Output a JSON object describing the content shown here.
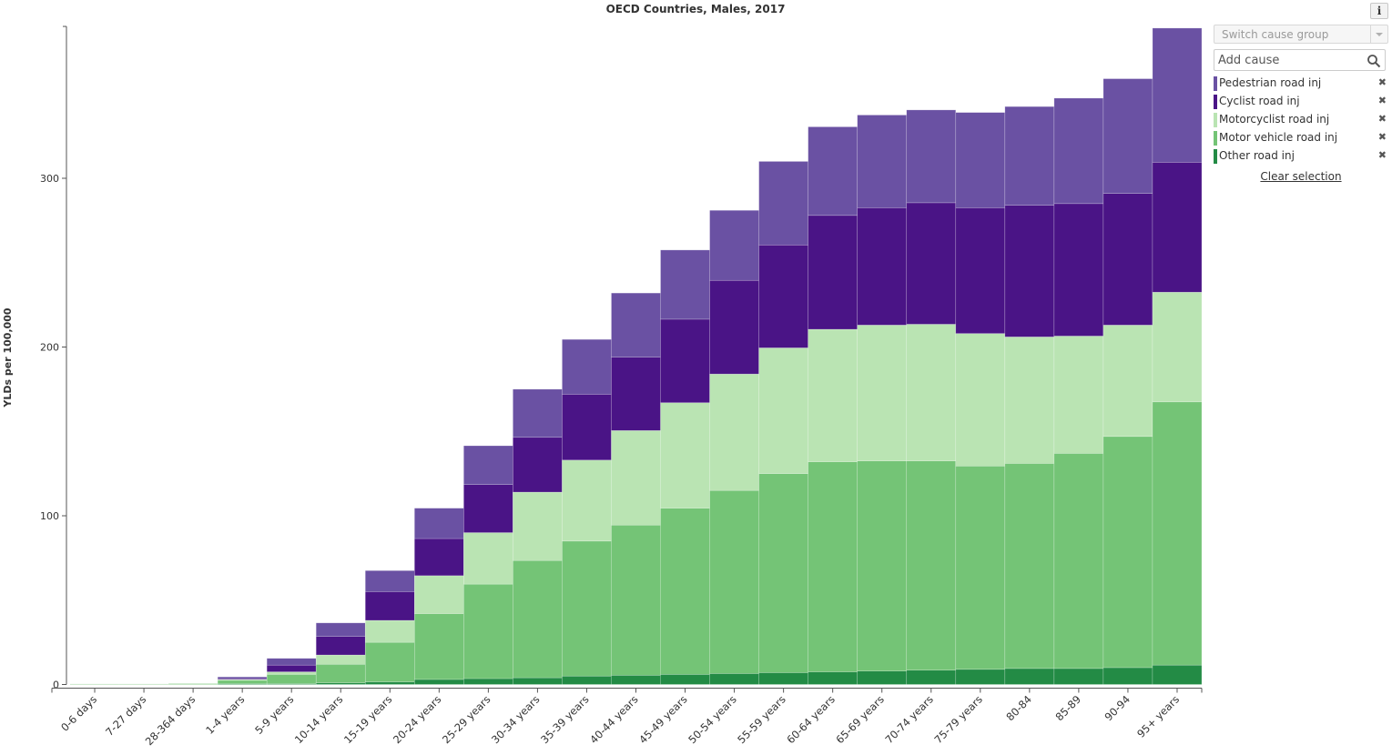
{
  "chart_data": {
    "type": "stacked-bar",
    "title": "OECD Countries, Males, 2017",
    "ylabel": "YLDs per 100,000",
    "xlabel": "",
    "ylim": [
      0,
      390
    ],
    "yticks": [
      0,
      100,
      200,
      300
    ],
    "categories": [
      "0-6 days",
      "7-27 days",
      "28-364 days",
      "1-4 years",
      "5-9 years",
      "10-14 years",
      "15-19 years",
      "20-24 years",
      "25-29 years",
      "30-34 years",
      "35-39 years",
      "40-44 years",
      "45-49 years",
      "50-54 years",
      "55-59 years",
      "60-64 years",
      "65-69 years",
      "70-74 years",
      "75-79 years",
      "80-84",
      "85-89",
      "90-94",
      "95+ years"
    ],
    "series": [
      {
        "name": "Other road inj",
        "color": "#238b45",
        "values": [
          0,
          0,
          0,
          0.5,
          0.5,
          1,
          1.5,
          3,
          3.5,
          4,
          5,
          5.5,
          6,
          6.5,
          7,
          7.5,
          8,
          8.5,
          9,
          9.5,
          9.5,
          10,
          11.5
        ]
      },
      {
        "name": "Motor vehicle road inj",
        "color": "#74c476",
        "values": [
          0.3,
          0.3,
          0.5,
          2,
          5.5,
          11,
          23.5,
          39,
          56,
          69.5,
          80,
          89,
          98.5,
          108.5,
          118,
          124.5,
          124.5,
          124,
          120.5,
          121.5,
          127.5,
          137,
          156
        ]
      },
      {
        "name": "Motorcyclist road inj",
        "color": "#bae4b3",
        "values": [
          0,
          0,
          0,
          0.5,
          1.5,
          5.5,
          13,
          22.5,
          30.5,
          40.5,
          48,
          56,
          62.5,
          69,
          74.5,
          78.5,
          80.5,
          81,
          78.5,
          75,
          69.5,
          66,
          65
        ]
      },
      {
        "name": "Cyclist road inj",
        "color": "#4a1486",
        "values": [
          0,
          0,
          0,
          0.5,
          4,
          11,
          17,
          22,
          28.5,
          32.5,
          39,
          43.5,
          49.5,
          55.5,
          61,
          67.5,
          69.5,
          72,
          74.5,
          78,
          78.5,
          78,
          77
        ]
      },
      {
        "name": "Pedestrian road inj",
        "color": "#6a51a3",
        "values": [
          0,
          0,
          0,
          1,
          4,
          8,
          12.5,
          18,
          23,
          28.5,
          32.5,
          38,
          41,
          41.5,
          49.5,
          52.5,
          55,
          55,
          56.5,
          58.5,
          62.5,
          68,
          79.5
        ]
      }
    ]
  },
  "sidebar": {
    "switch_placeholder": "Switch cause group",
    "add_cause_placeholder": "Add cause",
    "legend": [
      {
        "label": "Pedestrian road inj",
        "color": "#6a51a3"
      },
      {
        "label": "Cyclist road inj",
        "color": "#4a1486"
      },
      {
        "label": "Motorcyclist road inj",
        "color": "#bae4b3"
      },
      {
        "label": "Motor vehicle road inj",
        "color": "#74c476"
      },
      {
        "label": "Other road inj",
        "color": "#238b45"
      }
    ],
    "remove_glyph": "✖",
    "clear_label": "Clear selection",
    "info_label": "i"
  }
}
